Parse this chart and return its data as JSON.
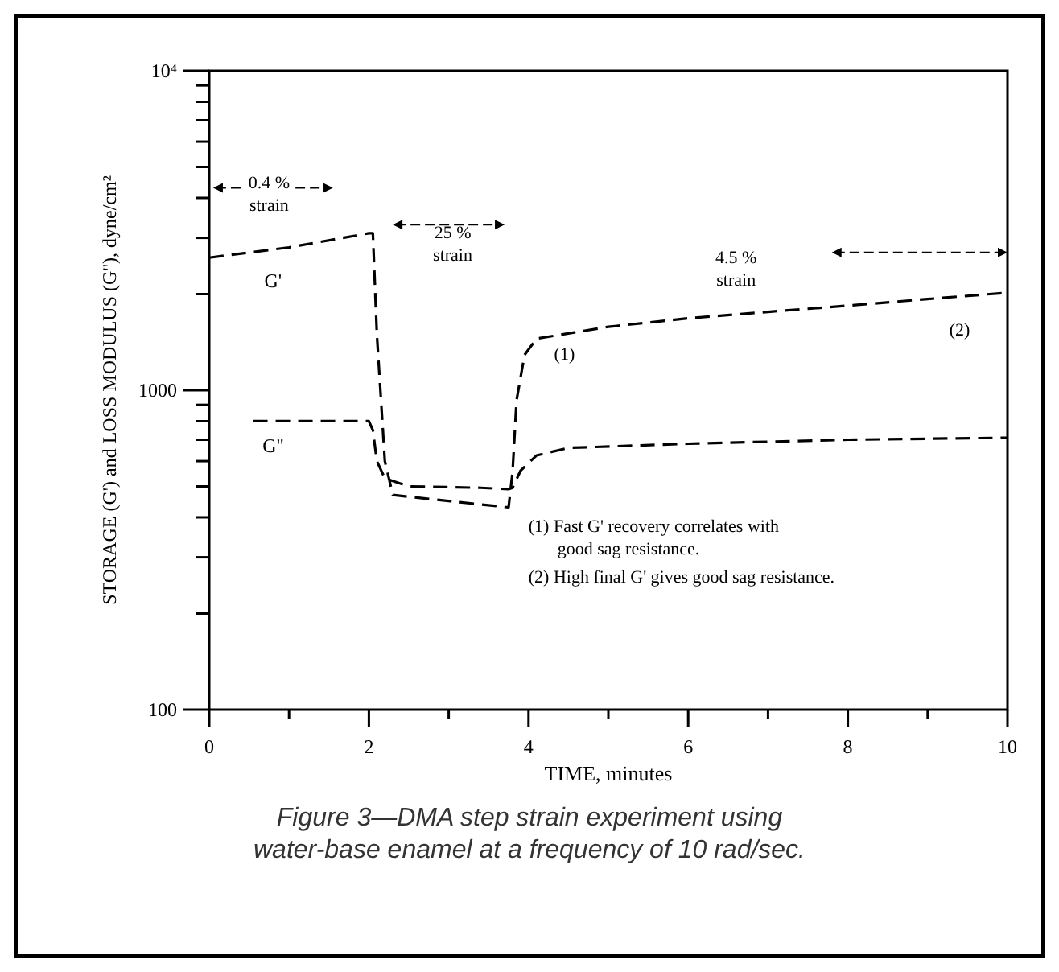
{
  "chart_data": {
    "type": "line",
    "xlabel": "TIME, minutes",
    "ylabel": "STORAGE (G') and LOSS MODULUS (G''), dyne/cm²",
    "log": "y",
    "grid": false,
    "xlim": [
      0,
      10
    ],
    "ylim": [
      100,
      10000
    ],
    "xticks": [
      0,
      {
        "value": 1,
        "label": null
      },
      2,
      {
        "value": 3,
        "label": null
      },
      4,
      {
        "value": 5,
        "label": null
      },
      6,
      {
        "value": 7,
        "label": null
      },
      8,
      {
        "value": 9,
        "label": null
      },
      10
    ],
    "yticks": [
      100,
      {
        "value": 200,
        "label": null
      },
      {
        "value": 300,
        "label": null
      },
      {
        "value": 400,
        "label": null
      },
      {
        "value": 500,
        "label": null
      },
      {
        "value": 600,
        "label": null
      },
      {
        "value": 700,
        "label": null
      },
      {
        "value": 800,
        "label": null
      },
      {
        "value": 900,
        "label": null
      },
      1000,
      {
        "value": 2000,
        "label": null
      },
      {
        "value": 3000,
        "label": null
      },
      {
        "value": 4000,
        "label": null
      },
      {
        "value": 5000,
        "label": null
      },
      {
        "value": 6000,
        "label": null
      },
      {
        "value": 7000,
        "label": null
      },
      {
        "value": 8000,
        "label": null
      },
      {
        "value": 9000,
        "label": null
      },
      {
        "value": 10000,
        "label": "10⁴"
      }
    ],
    "series": [
      {
        "name": "G'",
        "color": "#000000",
        "line_style": "dashed",
        "x": [
          0,
          1,
          2,
          2.05,
          2.1,
          2.2,
          2.3,
          3,
          3.75,
          3.8,
          3.85,
          3.95,
          4.1,
          5,
          6,
          7,
          8,
          9,
          10
        ],
        "values": [
          2600,
          2800,
          3100,
          3100,
          1500,
          600,
          470,
          450,
          430,
          555,
          930,
          1290,
          1450,
          1580,
          1680,
          1760,
          1840,
          1930,
          2020
        ]
      },
      {
        "name": "G''",
        "color": "#000000",
        "line_style": "dashed",
        "x": [
          0.55,
          2,
          2.05,
          2.1,
          2.2,
          2.5,
          3.4,
          3.75,
          3.8,
          3.9,
          4.1,
          4.5,
          6,
          8,
          10
        ],
        "values": [
          800,
          800,
          750,
          600,
          530,
          500,
          495,
          490,
          495,
          560,
          625,
          660,
          680,
          700,
          710
        ]
      }
    ],
    "annotations": [
      "0.4 %\nstrain",
      "25 %\nstrain",
      "4.5 %\nstrain",
      "(1)",
      "(2)",
      "(1) Fast G' recovery correlates with\ngood sag resistance.",
      "(2) High final G' gives good sag resistance.",
      "Figure 3—DMA step strain experiment using\nwater-base enamel at a frequency of 10 rad/sec."
    ]
  }
}
